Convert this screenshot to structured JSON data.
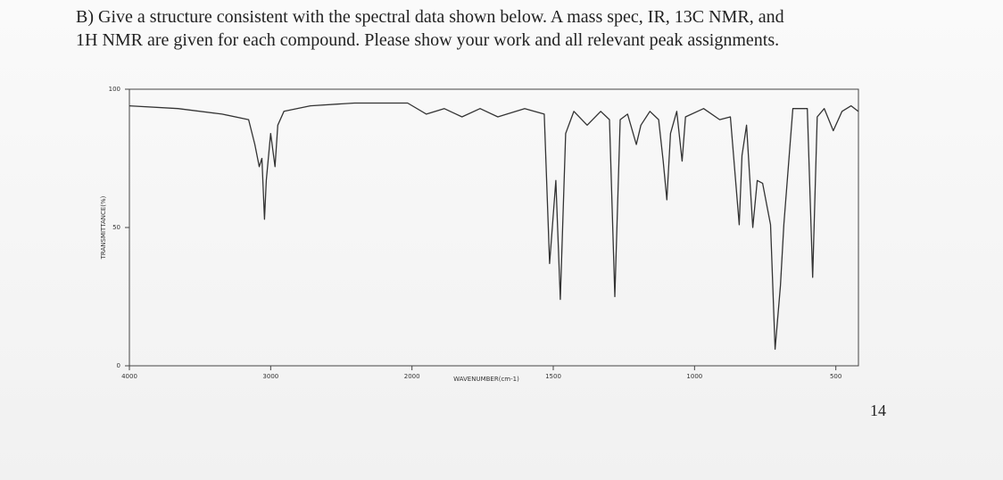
{
  "question": {
    "lines": [
      "B) Give a structure consistent with the spectral data shown below.  A mass spec, IR, 13C NMR, and",
      "1H NMR are given for each compound.  Please show your work and all relevant peak assignments."
    ]
  },
  "page_number": "14",
  "chart_data": {
    "type": "line",
    "x_label": "WAVENUMBER(cm-1)",
    "y_label": "TRANSMITTANCE(%)",
    "xlim": [
      4000,
      420
    ],
    "scale_change_at": 2000,
    "xticks": [
      4000,
      3000,
      2000,
      1500,
      1000,
      500
    ],
    "ylim": [
      0,
      100
    ],
    "yticks": [
      0,
      50,
      100
    ],
    "color": "#333333",
    "x": [
      4000,
      3656,
      3344,
      3156,
      3112,
      3081,
      3062,
      3044,
      3031,
      3000,
      2969,
      2950,
      2906,
      2719,
      2406,
      2031,
      1949,
      1886,
      1823,
      1759,
      1696,
      1601,
      1532,
      1513,
      1491,
      1475,
      1456,
      1427,
      1380,
      1332,
      1301,
      1282,
      1263,
      1237,
      1206,
      1190,
      1158,
      1127,
      1111,
      1098,
      1085,
      1063,
      1044,
      1032,
      968,
      911,
      873,
      842,
      832,
      816,
      794,
      778,
      759,
      731,
      715,
      696,
      684,
      652,
      620,
      601,
      582,
      566,
      541,
      509,
      478,
      446,
      421
    ],
    "values": [
      94,
      93,
      91,
      89,
      80,
      72,
      75,
      53,
      67,
      84,
      72,
      87,
      92,
      94,
      95,
      95,
      91,
      93,
      90,
      93,
      90,
      93,
      91,
      37,
      67,
      24,
      84,
      92,
      87,
      92,
      89,
      25,
      89,
      91,
      80,
      87,
      92,
      89,
      74,
      60,
      84,
      92,
      74,
      90,
      93,
      89,
      90,
      51,
      76,
      87,
      50,
      67,
      66,
      51,
      6,
      29,
      51,
      93,
      93,
      93,
      32,
      90,
      93,
      85,
      92,
      94,
      92
    ]
  }
}
